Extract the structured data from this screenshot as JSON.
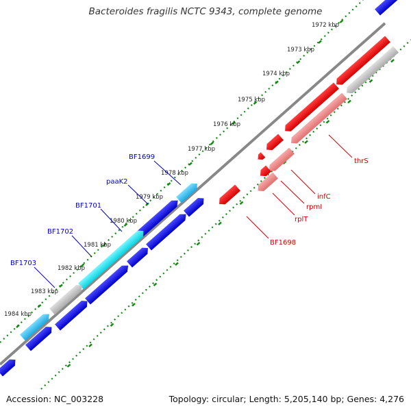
{
  "title": "Bacteroides fragilis NCTC 9343, complete genome",
  "footer": {
    "accession": "Accession: NC_003228",
    "summary": "Topology: circular; Length: 5,205,140 bp; Genes: 4,276"
  },
  "ticks": [
    {
      "label": "1972 kbp"
    },
    {
      "label": "1973 kbp"
    },
    {
      "label": "1974 kbp"
    },
    {
      "label": "1975 kbp"
    },
    {
      "label": "1976 kbp"
    },
    {
      "label": "1977 kbp"
    },
    {
      "label": "1978 kbp"
    },
    {
      "label": "1979 kbp"
    },
    {
      "label": "1980 kbp"
    },
    {
      "label": "1981 kbp"
    },
    {
      "label": "1982 kbp"
    },
    {
      "label": "1983 kbp"
    },
    {
      "label": "1984 kbp"
    }
  ],
  "gene_labels": [
    {
      "text": "BF1699",
      "color": "#0000cc"
    },
    {
      "text": "paaK2",
      "color": "#0000cc"
    },
    {
      "text": "BF1701",
      "color": "#0000cc"
    },
    {
      "text": "BF1702",
      "color": "#0000cc"
    },
    {
      "text": "BF1703",
      "color": "#0000cc"
    },
    {
      "text": "thrS",
      "color": "#cc0000"
    },
    {
      "text": "infC",
      "color": "#cc0000"
    },
    {
      "text": "rpmI",
      "color": "#cc0000"
    },
    {
      "text": "rplT",
      "color": "#cc0000"
    },
    {
      "text": "BF1698",
      "color": "#cc0000"
    }
  ],
  "colors": {
    "forward_cds": "#0000dd",
    "forward_feature": "#33ccee",
    "forward_rna": "#00dddd",
    "reverse_cds": "#ee0000",
    "reverse_feature": "#ee8888",
    "pseudo": "#bbbbbb",
    "backbone": "#888888",
    "tick": "#118811"
  }
}
